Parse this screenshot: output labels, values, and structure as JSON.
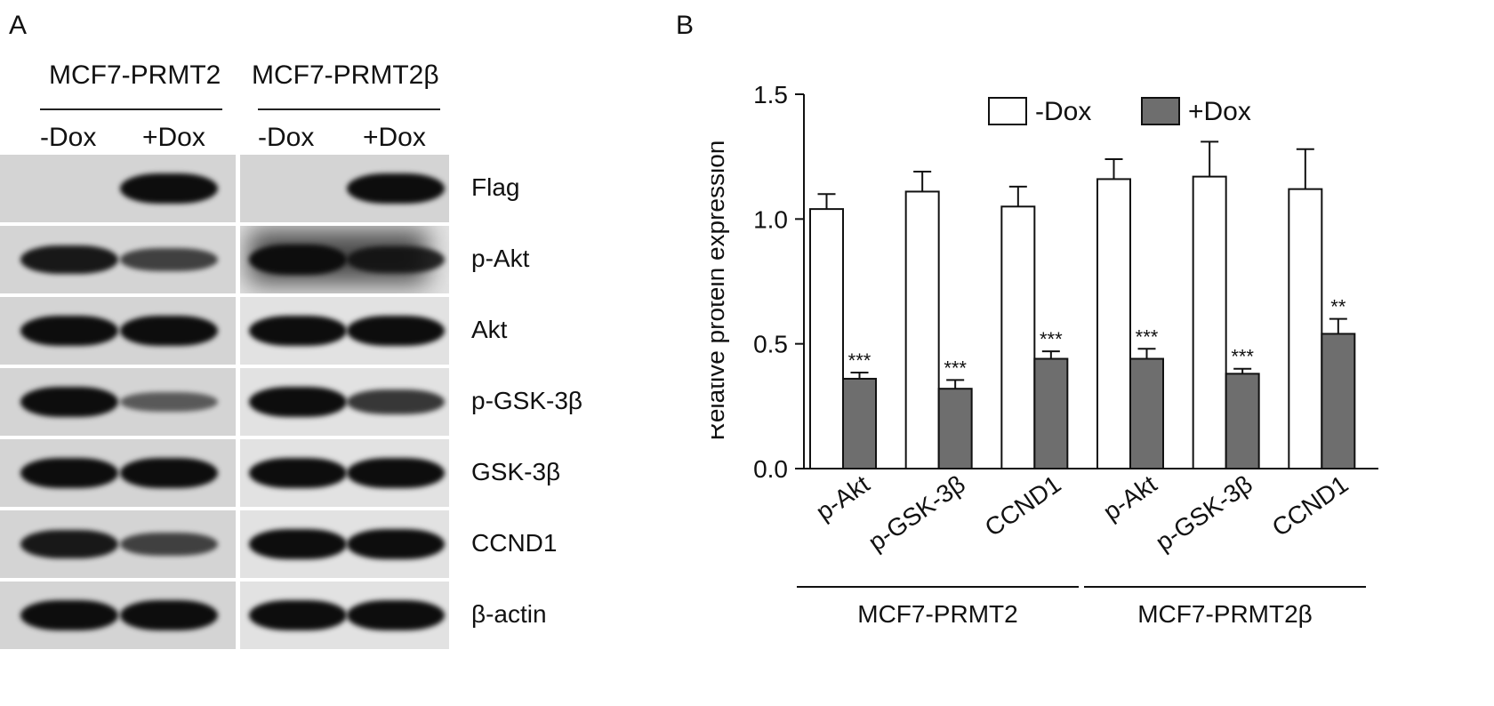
{
  "panel_a": {
    "letter": "A",
    "groups": [
      {
        "name": "MCF7-PRMT2",
        "conditions": [
          "-Dox",
          "+Dox"
        ]
      },
      {
        "name": "MCF7-PRMT2β",
        "conditions": [
          "-Dox",
          "+Dox"
        ]
      }
    ],
    "rows": [
      "Flag",
      "p-Akt",
      "Akt",
      "p-GSK-3β",
      "GSK-3β",
      "CCND1",
      "β-actin"
    ],
    "band_intensity": [
      [
        0.0,
        1.0,
        0.0,
        1.0
      ],
      [
        0.9,
        0.6,
        1.0,
        0.8
      ],
      [
        1.0,
        1.0,
        1.0,
        1.0
      ],
      [
        1.0,
        0.4,
        1.0,
        0.7
      ],
      [
        1.0,
        1.0,
        1.0,
        1.0
      ],
      [
        0.9,
        0.6,
        1.0,
        1.0
      ],
      [
        1.0,
        1.0,
        1.0,
        1.0
      ]
    ]
  },
  "panel_b": {
    "letter": "B",
    "legend": [
      "-Dox",
      "+Dox"
    ],
    "colors": {
      "-Dox": "#ffffff",
      "+Dox": "#6e6e6e",
      "stroke": "#111111"
    }
  },
  "chart_data": {
    "type": "bar",
    "title": "",
    "xlabel": "",
    "ylabel": "Relative protein expression",
    "ylim": [
      0,
      1.5
    ],
    "yticks": [
      "0.0",
      "0.5",
      "1.0",
      "1.5"
    ],
    "categories": [
      "p-Akt",
      "p-GSK-3β",
      "CCND1",
      "p-Akt",
      "p-GSK-3β",
      "CCND1"
    ],
    "groups": [
      {
        "label": "MCF7-PRMT2",
        "categories": [
          0,
          1,
          2
        ]
      },
      {
        "label": "MCF7-PRMT2β",
        "categories": [
          3,
          4,
          5
        ]
      }
    ],
    "series": [
      {
        "name": "-Dox",
        "values": [
          1.04,
          1.11,
          1.05,
          1.16,
          1.17,
          1.12
        ],
        "errors": [
          0.06,
          0.08,
          0.08,
          0.08,
          0.14,
          0.16
        ],
        "significance": [
          "",
          "",
          "",
          "",
          "",
          ""
        ]
      },
      {
        "name": "+Dox",
        "values": [
          0.36,
          0.32,
          0.44,
          0.44,
          0.38,
          0.54
        ],
        "errors": [
          0.025,
          0.035,
          0.03,
          0.04,
          0.02,
          0.06
        ],
        "significance": [
          "***",
          "***",
          "***",
          "***",
          "***",
          "**"
        ]
      }
    ],
    "legend_position": "top-right",
    "grid": false
  }
}
